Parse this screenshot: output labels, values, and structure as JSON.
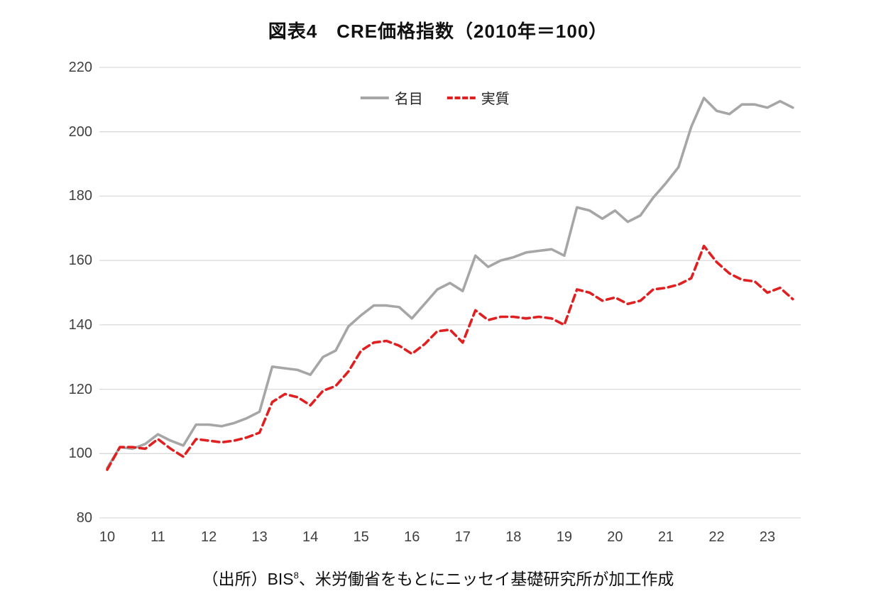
{
  "title": "図表4　CRE価格指数（2010年＝100）",
  "legend": {
    "items": [
      {
        "label": "名目",
        "color": "#a6a6a6",
        "style": "solid"
      },
      {
        "label": "実質",
        "color": "#e02020",
        "style": "dashed"
      }
    ]
  },
  "source": {
    "prefix": "（出所）BIS",
    "superscript": "8",
    "suffix": "、米労働省をもとにニッセイ基礎研究所が加工作成"
  },
  "colors": {
    "nominal_line": "#a6a6a6",
    "real_line": "#e02020",
    "gridline": "#d9d9d9",
    "axis_text": "#3f3f3f"
  },
  "chart_data": {
    "type": "line",
    "title": "図表4　CRE価格指数（2010年＝100）",
    "xlabel": "",
    "ylabel": "",
    "ylim": [
      80,
      220
    ],
    "y_ticks": [
      80,
      100,
      120,
      140,
      160,
      180,
      200,
      220
    ],
    "x_tick_labels": [
      "10",
      "11",
      "12",
      "13",
      "14",
      "15",
      "16",
      "17",
      "18",
      "19",
      "20",
      "21",
      "22",
      "23"
    ],
    "grid": "horizontal",
    "legend_position": "top-center",
    "grid_color": "#d9d9d9",
    "x": [
      10,
      10.25,
      10.5,
      10.75,
      11,
      11.25,
      11.5,
      11.75,
      12,
      12.25,
      12.5,
      12.75,
      13,
      13.25,
      13.5,
      13.75,
      14,
      14.25,
      14.5,
      14.75,
      15,
      15.25,
      15.5,
      15.75,
      16,
      16.25,
      16.5,
      16.75,
      17,
      17.25,
      17.5,
      17.75,
      18,
      18.25,
      18.5,
      18.75,
      19,
      19.25,
      19.5,
      19.75,
      20,
      20.25,
      20.5,
      20.75,
      21,
      21.25,
      21.5,
      21.75,
      22,
      22.25,
      22.5,
      22.75,
      23,
      23.25,
      23.5
    ],
    "series": [
      {
        "name": "名目",
        "color": "#a6a6a6",
        "dash": "solid",
        "values": [
          95.5,
          102,
          101.5,
          103,
          106,
          104,
          102.5,
          109,
          109,
          108.5,
          109.5,
          111,
          113,
          127,
          126.5,
          126,
          124.5,
          130,
          132,
          139.5,
          143,
          146,
          146,
          145.5,
          142,
          146.5,
          151,
          153,
          150.5,
          161.5,
          158,
          160,
          161,
          162.5,
          163,
          163.5,
          161.5,
          176.5,
          175.5,
          173,
          175.5,
          172,
          174,
          179.5,
          184,
          189,
          201.5,
          210.5,
          206.5,
          205.5,
          208.5,
          208.5,
          207.5,
          209.5,
          207.5
        ]
      },
      {
        "name": "実質",
        "color": "#e02020",
        "dash": "dashed",
        "values": [
          95,
          102,
          102,
          101.5,
          104.5,
          101.5,
          99,
          104.5,
          104,
          103.5,
          104,
          105,
          106.5,
          116,
          118.5,
          117.5,
          115,
          119.5,
          121,
          125.5,
          132,
          134.5,
          135,
          133.5,
          131,
          134,
          138,
          138.5,
          134.5,
          144.5,
          141.5,
          142.5,
          142.5,
          142,
          142.5,
          142,
          140,
          151,
          150,
          147.5,
          148.5,
          146.5,
          147.5,
          151,
          151.5,
          152.5,
          154.5,
          164.5,
          159.5,
          156,
          154,
          153.5,
          150,
          151.5,
          148
        ]
      }
    ]
  }
}
